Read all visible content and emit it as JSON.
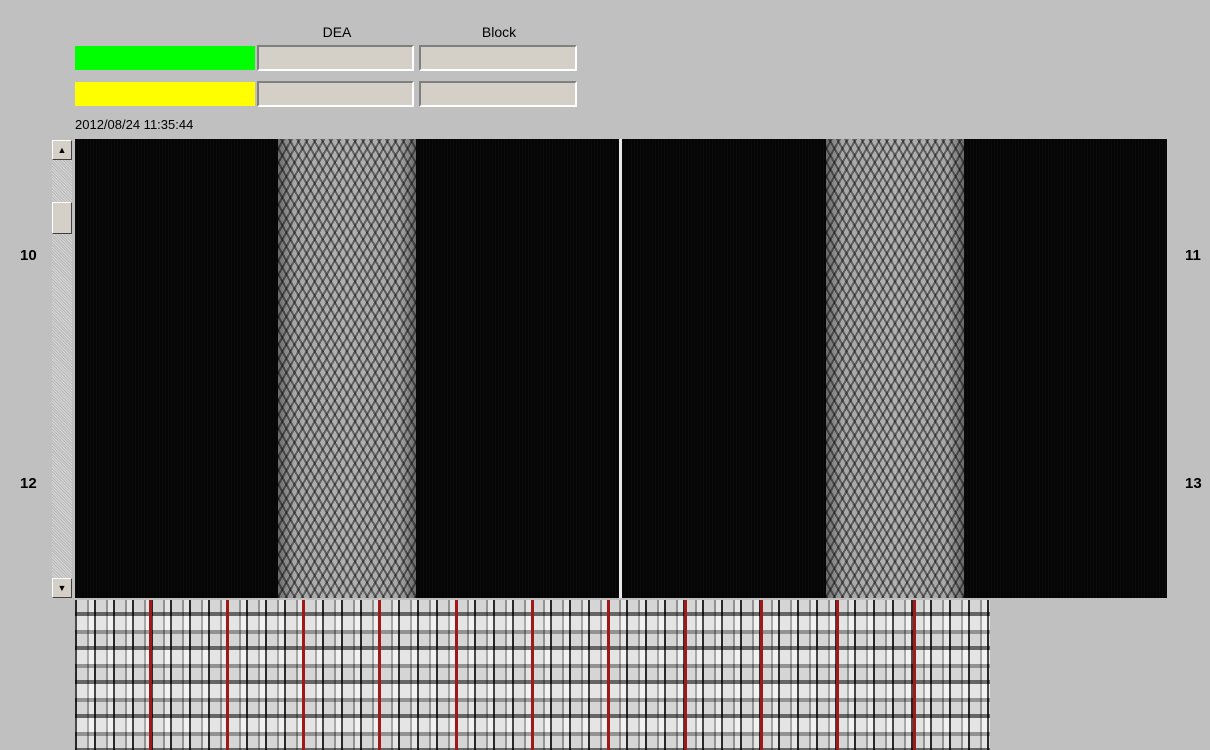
{
  "header": {
    "col_dea": "DEA",
    "col_block": "Block"
  },
  "status_rows": [
    {
      "color": "#00ff00",
      "dea": "",
      "block": ""
    },
    {
      "color": "#ffff00",
      "dea": "",
      "block": ""
    }
  ],
  "timestamp": "2012/08/24 11:35:44",
  "zone_labels": {
    "left_top": "10",
    "left_bottom": "12",
    "right_top": "11",
    "right_bottom": "13"
  },
  "scrollbar": {
    "up_icon": "arrow-up-icon",
    "down_icon": "arrow-down-icon"
  }
}
